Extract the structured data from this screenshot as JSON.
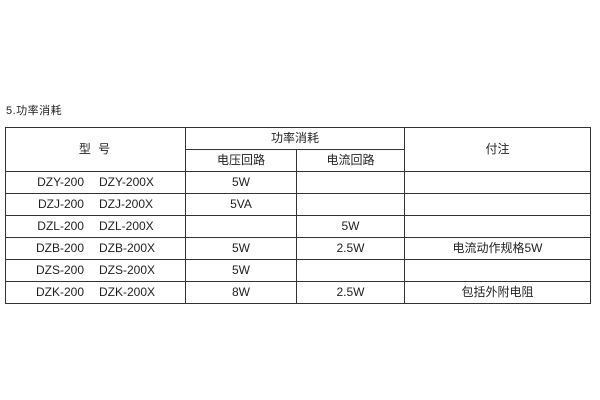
{
  "page": {
    "title": "5.功率消耗"
  },
  "table": {
    "header": {
      "model": "型  号",
      "power_group": "功率消耗",
      "voltage": "电压回路",
      "current": "电流回路",
      "note": "付注"
    },
    "rows": [
      {
        "model_a": "DZY-200",
        "model_b": "DZY-200X",
        "voltage": "5W",
        "current": "",
        "note": ""
      },
      {
        "model_a": "DZJ-200",
        "model_b": "DZJ-200X",
        "voltage": "5VA",
        "current": "",
        "note": ""
      },
      {
        "model_a": "DZL-200",
        "model_b": "DZL-200X",
        "voltage": "",
        "current": "5W",
        "note": ""
      },
      {
        "model_a": "DZB-200",
        "model_b": "DZB-200X",
        "voltage": "5W",
        "current": "2.5W",
        "note": "电流动作规格5W"
      },
      {
        "model_a": "DZS-200",
        "model_b": "DZS-200X",
        "voltage": "5W",
        "current": "",
        "note": ""
      },
      {
        "model_a": "DZK-200",
        "model_b": "DZK-200X",
        "voltage": "8W",
        "current": "2.5W",
        "note": "包括外附电阻"
      }
    ],
    "colors": {
      "border": "#333333",
      "text": "#1f1f1f",
      "background": "#ffffff"
    }
  }
}
